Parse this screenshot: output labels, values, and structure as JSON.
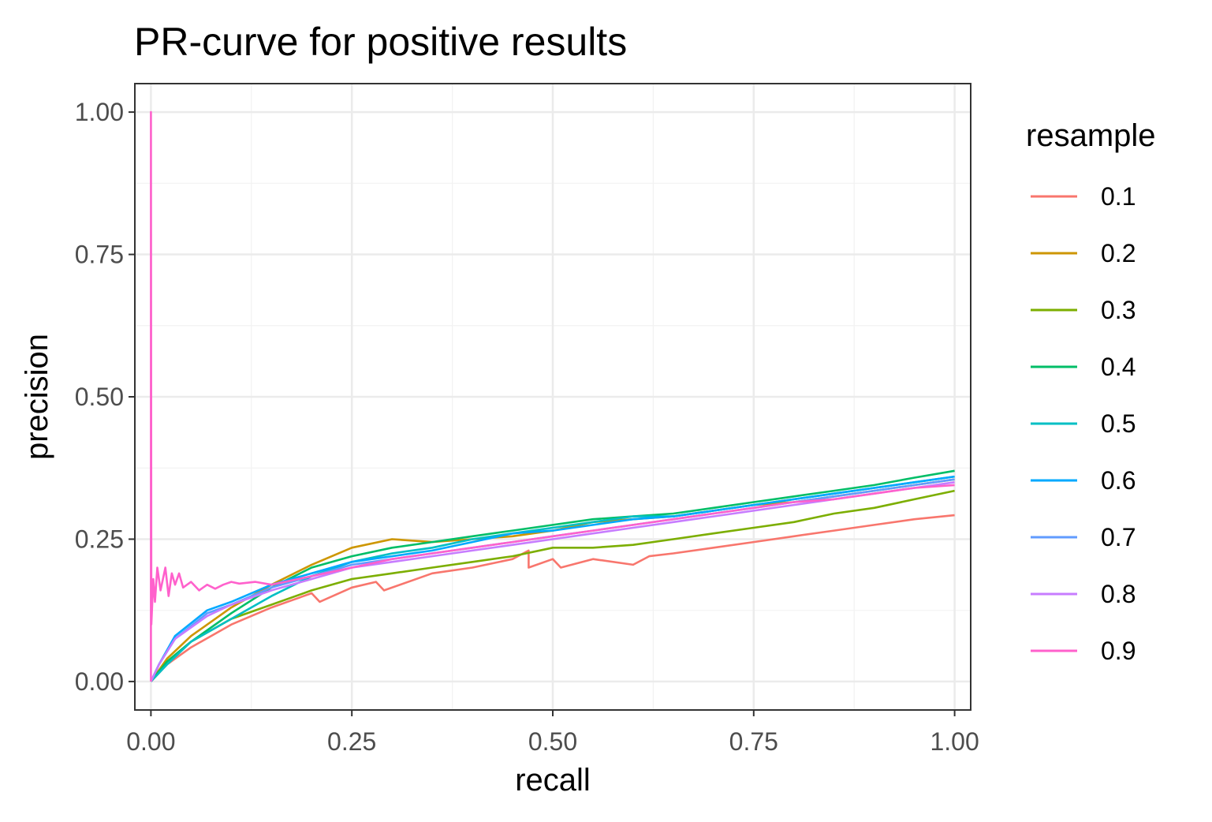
{
  "chart_data": {
    "type": "line",
    "title": "PR-curve for positive results",
    "xlabel": "recall",
    "ylabel": "precision",
    "xlim": [
      -0.02,
      1.02
    ],
    "ylim": [
      -0.05,
      1.05
    ],
    "x_ticks": [
      0.0,
      0.25,
      0.5,
      0.75,
      1.0
    ],
    "x_tick_labels": [
      "0.00",
      "0.25",
      "0.50",
      "0.75",
      "1.00"
    ],
    "y_ticks": [
      0.0,
      0.25,
      0.5,
      0.75,
      1.0
    ],
    "y_tick_labels": [
      "0.00",
      "0.25",
      "0.50",
      "0.75",
      "1.00"
    ],
    "grid": true,
    "legend": {
      "title": "resample",
      "position": "right"
    },
    "series": [
      {
        "name": "0.1",
        "color": "#F8766D",
        "points": [
          [
            0,
            0
          ],
          [
            0.02,
            0.03
          ],
          [
            0.05,
            0.06
          ],
          [
            0.1,
            0.1
          ],
          [
            0.15,
            0.13
          ],
          [
            0.2,
            0.155
          ],
          [
            0.21,
            0.14
          ],
          [
            0.25,
            0.165
          ],
          [
            0.28,
            0.175
          ],
          [
            0.29,
            0.16
          ],
          [
            0.35,
            0.19
          ],
          [
            0.4,
            0.2
          ],
          [
            0.45,
            0.215
          ],
          [
            0.47,
            0.23
          ],
          [
            0.47,
            0.2
          ],
          [
            0.5,
            0.215
          ],
          [
            0.51,
            0.2
          ],
          [
            0.55,
            0.215
          ],
          [
            0.6,
            0.205
          ],
          [
            0.62,
            0.22
          ],
          [
            0.65,
            0.225
          ],
          [
            0.7,
            0.235
          ],
          [
            0.75,
            0.245
          ],
          [
            0.8,
            0.255
          ],
          [
            0.85,
            0.265
          ],
          [
            0.9,
            0.275
          ],
          [
            0.95,
            0.285
          ],
          [
            1.0,
            0.292
          ]
        ]
      },
      {
        "name": "0.2",
        "color": "#CD9600",
        "points": [
          [
            0,
            0
          ],
          [
            0.02,
            0.04
          ],
          [
            0.05,
            0.08
          ],
          [
            0.1,
            0.13
          ],
          [
            0.15,
            0.17
          ],
          [
            0.2,
            0.205
          ],
          [
            0.25,
            0.235
          ],
          [
            0.3,
            0.25
          ],
          [
            0.35,
            0.245
          ],
          [
            0.4,
            0.25
          ],
          [
            0.45,
            0.255
          ],
          [
            0.5,
            0.265
          ],
          [
            0.55,
            0.28
          ],
          [
            0.6,
            0.285
          ],
          [
            0.65,
            0.29
          ],
          [
            0.7,
            0.3
          ],
          [
            0.75,
            0.31
          ],
          [
            0.8,
            0.315
          ],
          [
            0.85,
            0.325
          ],
          [
            0.9,
            0.335
          ],
          [
            0.95,
            0.345
          ],
          [
            1.0,
            0.355
          ]
        ]
      },
      {
        "name": "0.3",
        "color": "#7CAE00",
        "points": [
          [
            0,
            0
          ],
          [
            0.02,
            0.035
          ],
          [
            0.05,
            0.07
          ],
          [
            0.1,
            0.11
          ],
          [
            0.15,
            0.135
          ],
          [
            0.2,
            0.16
          ],
          [
            0.25,
            0.18
          ],
          [
            0.3,
            0.19
          ],
          [
            0.35,
            0.2
          ],
          [
            0.4,
            0.21
          ],
          [
            0.45,
            0.22
          ],
          [
            0.5,
            0.235
          ],
          [
            0.55,
            0.235
          ],
          [
            0.6,
            0.24
          ],
          [
            0.65,
            0.25
          ],
          [
            0.7,
            0.26
          ],
          [
            0.75,
            0.27
          ],
          [
            0.8,
            0.28
          ],
          [
            0.85,
            0.295
          ],
          [
            0.9,
            0.305
          ],
          [
            0.95,
            0.32
          ],
          [
            1.0,
            0.335
          ]
        ]
      },
      {
        "name": "0.4",
        "color": "#00BE67",
        "points": [
          [
            0,
            0
          ],
          [
            0.02,
            0.035
          ],
          [
            0.05,
            0.07
          ],
          [
            0.1,
            0.12
          ],
          [
            0.15,
            0.165
          ],
          [
            0.2,
            0.2
          ],
          [
            0.25,
            0.22
          ],
          [
            0.3,
            0.235
          ],
          [
            0.35,
            0.245
          ],
          [
            0.4,
            0.255
          ],
          [
            0.45,
            0.265
          ],
          [
            0.5,
            0.275
          ],
          [
            0.55,
            0.285
          ],
          [
            0.6,
            0.29
          ],
          [
            0.65,
            0.295
          ],
          [
            0.7,
            0.305
          ],
          [
            0.75,
            0.315
          ],
          [
            0.8,
            0.325
          ],
          [
            0.85,
            0.335
          ],
          [
            0.9,
            0.345
          ],
          [
            0.95,
            0.358
          ],
          [
            1.0,
            0.37
          ]
        ]
      },
      {
        "name": "0.5",
        "color": "#00BFC4",
        "points": [
          [
            0,
            0
          ],
          [
            0.02,
            0.03
          ],
          [
            0.05,
            0.07
          ],
          [
            0.1,
            0.11
          ],
          [
            0.15,
            0.15
          ],
          [
            0.2,
            0.185
          ],
          [
            0.25,
            0.21
          ],
          [
            0.3,
            0.225
          ],
          [
            0.35,
            0.235
          ],
          [
            0.4,
            0.25
          ],
          [
            0.45,
            0.26
          ],
          [
            0.5,
            0.27
          ],
          [
            0.55,
            0.28
          ],
          [
            0.6,
            0.29
          ],
          [
            0.65,
            0.29
          ],
          [
            0.7,
            0.3
          ],
          [
            0.75,
            0.31
          ],
          [
            0.8,
            0.32
          ],
          [
            0.85,
            0.33
          ],
          [
            0.9,
            0.34
          ],
          [
            0.95,
            0.35
          ],
          [
            1.0,
            0.36
          ]
        ]
      },
      {
        "name": "0.6",
        "color": "#00A9FF",
        "points": [
          [
            0,
            0
          ],
          [
            0.01,
            0.03
          ],
          [
            0.03,
            0.08
          ],
          [
            0.07,
            0.125
          ],
          [
            0.1,
            0.14
          ],
          [
            0.15,
            0.17
          ],
          [
            0.2,
            0.19
          ],
          [
            0.25,
            0.21
          ],
          [
            0.3,
            0.22
          ],
          [
            0.35,
            0.23
          ],
          [
            0.4,
            0.245
          ],
          [
            0.45,
            0.26
          ],
          [
            0.5,
            0.265
          ],
          [
            0.55,
            0.275
          ],
          [
            0.6,
            0.285
          ],
          [
            0.65,
            0.29
          ],
          [
            0.7,
            0.3
          ],
          [
            0.75,
            0.31
          ],
          [
            0.8,
            0.32
          ],
          [
            0.85,
            0.33
          ],
          [
            0.9,
            0.34
          ],
          [
            0.95,
            0.35
          ],
          [
            1.0,
            0.36
          ]
        ]
      },
      {
        "name": "0.7",
        "color": "#619CFF",
        "points": [
          [
            0,
            0
          ],
          [
            0.01,
            0.03
          ],
          [
            0.03,
            0.075
          ],
          [
            0.07,
            0.12
          ],
          [
            0.1,
            0.135
          ],
          [
            0.15,
            0.165
          ],
          [
            0.2,
            0.185
          ],
          [
            0.25,
            0.205
          ],
          [
            0.3,
            0.215
          ],
          [
            0.35,
            0.225
          ],
          [
            0.4,
            0.235
          ],
          [
            0.45,
            0.245
          ],
          [
            0.5,
            0.255
          ],
          [
            0.55,
            0.265
          ],
          [
            0.6,
            0.275
          ],
          [
            0.65,
            0.285
          ],
          [
            0.7,
            0.295
          ],
          [
            0.75,
            0.305
          ],
          [
            0.8,
            0.315
          ],
          [
            0.85,
            0.325
          ],
          [
            0.9,
            0.335
          ],
          [
            0.95,
            0.345
          ],
          [
            1.0,
            0.355
          ]
        ]
      },
      {
        "name": "0.8",
        "color": "#C77CFF",
        "points": [
          [
            0,
            0
          ],
          [
            0.01,
            0.03
          ],
          [
            0.03,
            0.075
          ],
          [
            0.07,
            0.115
          ],
          [
            0.1,
            0.135
          ],
          [
            0.15,
            0.16
          ],
          [
            0.2,
            0.18
          ],
          [
            0.25,
            0.2
          ],
          [
            0.3,
            0.21
          ],
          [
            0.35,
            0.22
          ],
          [
            0.4,
            0.23
          ],
          [
            0.45,
            0.24
          ],
          [
            0.5,
            0.25
          ],
          [
            0.55,
            0.26
          ],
          [
            0.6,
            0.27
          ],
          [
            0.65,
            0.28
          ],
          [
            0.7,
            0.29
          ],
          [
            0.75,
            0.3
          ],
          [
            0.8,
            0.31
          ],
          [
            0.85,
            0.32
          ],
          [
            0.9,
            0.33
          ],
          [
            0.95,
            0.34
          ],
          [
            1.0,
            0.35
          ]
        ]
      },
      {
        "name": "0.9",
        "color": "#FF61CC",
        "points": [
          [
            0,
            0
          ],
          [
            0,
            1.0
          ],
          [
            0.0005,
            0.1
          ],
          [
            0.003,
            0.18
          ],
          [
            0.005,
            0.14
          ],
          [
            0.008,
            0.2
          ],
          [
            0.012,
            0.16
          ],
          [
            0.018,
            0.2
          ],
          [
            0.022,
            0.15
          ],
          [
            0.026,
            0.19
          ],
          [
            0.03,
            0.17
          ],
          [
            0.035,
            0.19
          ],
          [
            0.04,
            0.165
          ],
          [
            0.05,
            0.175
          ],
          [
            0.06,
            0.16
          ],
          [
            0.07,
            0.17
          ],
          [
            0.08,
            0.163
          ],
          [
            0.09,
            0.17
          ],
          [
            0.1,
            0.175
          ],
          [
            0.11,
            0.172
          ],
          [
            0.13,
            0.175
          ],
          [
            0.15,
            0.17
          ],
          [
            0.2,
            0.185
          ],
          [
            0.25,
            0.2
          ],
          [
            0.3,
            0.215
          ],
          [
            0.35,
            0.225
          ],
          [
            0.4,
            0.235
          ],
          [
            0.45,
            0.245
          ],
          [
            0.5,
            0.255
          ],
          [
            0.55,
            0.265
          ],
          [
            0.6,
            0.275
          ],
          [
            0.65,
            0.285
          ],
          [
            0.7,
            0.295
          ],
          [
            0.75,
            0.305
          ],
          [
            0.8,
            0.315
          ],
          [
            0.85,
            0.32
          ],
          [
            0.9,
            0.33
          ],
          [
            0.95,
            0.34
          ],
          [
            1.0,
            0.345
          ]
        ]
      }
    ]
  }
}
